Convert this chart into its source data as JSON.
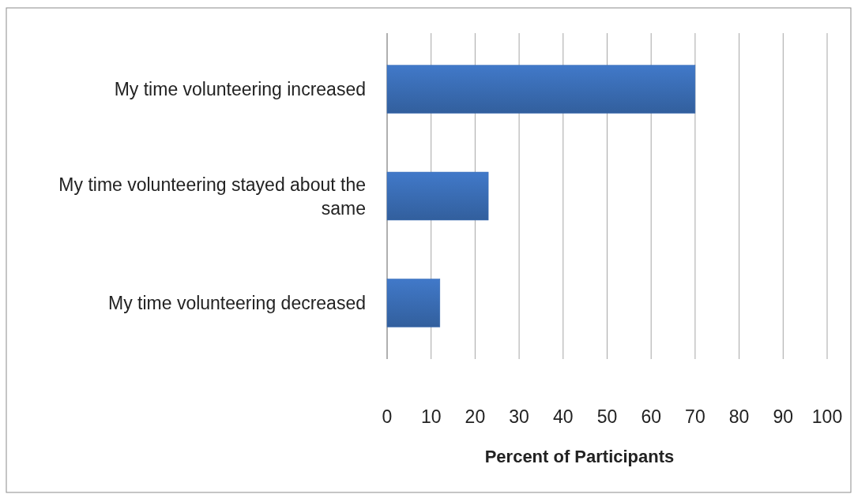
{
  "chart_data": {
    "type": "bar",
    "orientation": "horizontal",
    "xlabel": "Percent of Participants",
    "categories": [
      "My time volunteering increased",
      "My time volunteering stayed about the same",
      "My time volunteering decreased"
    ],
    "values": [
      70,
      23,
      12
    ],
    "color": "#3a6db5",
    "xlim": [
      0,
      100
    ],
    "xticks": [
      0,
      10,
      20,
      30,
      40,
      50,
      60,
      70,
      80,
      90,
      100
    ],
    "grid": "x"
  }
}
